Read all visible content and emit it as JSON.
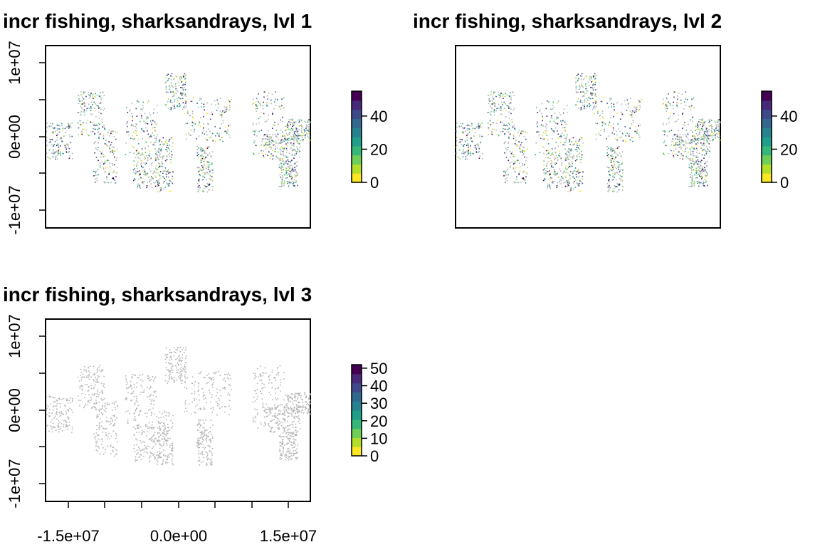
{
  "panels": [
    {
      "title": "incr fishing, sharksandrays, lvl 1",
      "y_tick_labels": [
        "1e+07",
        "0e+00",
        "-1e+07"
      ],
      "legend_ticks": [
        "0",
        "20",
        "40"
      ],
      "legend_max": 55,
      "colored": true
    },
    {
      "title": "incr fishing, sharksandrays, lvl 2",
      "y_tick_labels": [],
      "legend_ticks": [
        "0",
        "20",
        "40"
      ],
      "legend_max": 55,
      "colored": true
    },
    {
      "title": "incr fishing, sharksandrays, lvl 3",
      "y_tick_labels": [
        "1e+07",
        "0e+00",
        "-1e+07"
      ],
      "x_tick_labels": [
        "-1.5e+07",
        "0.0e+00",
        "1.5e+07"
      ],
      "legend_ticks": [
        "0",
        "10",
        "20",
        "30",
        "40",
        "50"
      ],
      "legend_max": 52,
      "colored": false
    }
  ],
  "colors": {
    "na_gray": "#b4b4b4",
    "viridis": [
      "#fde725",
      "#b5de2b",
      "#6ece58",
      "#35b779",
      "#1f9e89",
      "#26828e",
      "#31688e",
      "#3e4989",
      "#482878",
      "#440154"
    ]
  }
}
